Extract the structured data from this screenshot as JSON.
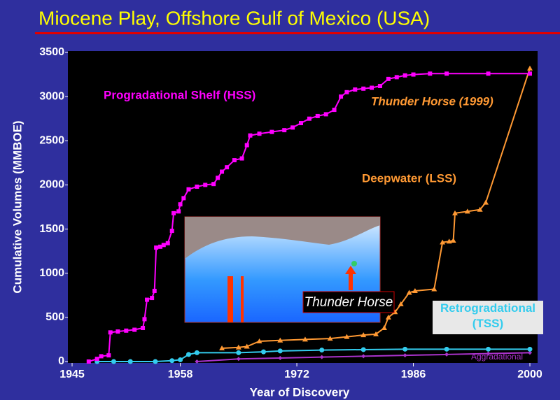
{
  "chart_data": {
    "type": "line",
    "title": "Miocene Play, Offshore Gulf of Mexico (USA)",
    "x_label": "Year of Discovery",
    "y_label": "Cumulative Volumes (MMBOE)",
    "xlim": [
      1945,
      2000
    ],
    "xticks": [
      1945,
      1958,
      1972,
      1986,
      2000
    ],
    "ylim": [
      0,
      3500
    ],
    "yticks": [
      0,
      500,
      1000,
      1500,
      2000,
      2500,
      3000,
      3500
    ],
    "annotations": [
      "Thunder Horse (1999)",
      "Thunder Horse"
    ],
    "series": [
      {
        "name": "Progradational Shelf (HSS)",
        "color": "#ff00ff",
        "marker": "square",
        "x": [
          1947,
          1948,
          1948.5,
          1949.4,
          1949.6,
          1950.5,
          1951.5,
          1952.5,
          1953.5,
          1953.7,
          1954,
          1954.6,
          1954.9,
          1955.1,
          1955.6,
          1956,
          1956.5,
          1957,
          1957.2,
          1957.8,
          1958,
          1958.4,
          1959,
          1960,
          1961,
          1962,
          1962.5,
          1963,
          1963.6,
          1964.5,
          1965.4,
          1966,
          1966.4,
          1967.5,
          1969,
          1970.5,
          1971.5,
          1972.5,
          1973.5,
          1974.5,
          1975.5,
          1976.5,
          1977.3,
          1978,
          1979,
          1980,
          1981,
          1982,
          1983,
          1984,
          1985,
          1986,
          1988,
          1990,
          1995,
          2000
        ],
        "values": [
          0,
          30,
          60,
          70,
          330,
          340,
          350,
          360,
          380,
          480,
          700,
          720,
          800,
          1290,
          1300,
          1320,
          1340,
          1480,
          1680,
          1700,
          1780,
          1850,
          1950,
          1980,
          2000,
          2010,
          2080,
          2150,
          2200,
          2280,
          2300,
          2450,
          2560,
          2580,
          2600,
          2620,
          2650,
          2700,
          2750,
          2780,
          2800,
          2850,
          3000,
          3050,
          3080,
          3090,
          3100,
          3120,
          3200,
          3220,
          3240,
          3250,
          3260,
          3260,
          3260,
          3260
        ]
      },
      {
        "name": "Deepwater (LSS)",
        "color": "#ff9933",
        "marker": "triangle",
        "x": [
          1963,
          1965,
          1966,
          1967.5,
          1970,
          1973,
          1976,
          1978,
          1980,
          1981.5,
          1982.5,
          1983,
          1983.8,
          1984.5,
          1985.5,
          1986.2,
          1988.5,
          1989.5,
          1990.3,
          1990.8,
          1991,
          1992.5,
          1994,
          1994.7,
          2000
        ],
        "values": [
          150,
          160,
          170,
          230,
          240,
          250,
          260,
          280,
          300,
          310,
          380,
          500,
          560,
          650,
          780,
          800,
          820,
          1350,
          1360,
          1370,
          1680,
          1700,
          1720,
          1800,
          3320
        ]
      },
      {
        "name": "Retrogradational (TSS)",
        "color": "#33ccee",
        "marker": "circle",
        "x": [
          1948,
          1950,
          1952,
          1955,
          1957,
          1958,
          1959,
          1960,
          1965,
          1968,
          1970,
          1975,
          1980,
          1985,
          1990,
          1995,
          2000
        ],
        "values": [
          0,
          0,
          0,
          0,
          10,
          20,
          80,
          100,
          100,
          110,
          120,
          130,
          135,
          140,
          140,
          140,
          140
        ]
      },
      {
        "name": "Aggradational",
        "color": "#aa33cc",
        "marker": "diamond",
        "x": [
          1960,
          1965,
          1970,
          1975,
          1980,
          1985,
          1990,
          1995,
          2000
        ],
        "values": [
          0,
          30,
          40,
          50,
          60,
          70,
          80,
          90,
          100
        ]
      }
    ]
  }
}
